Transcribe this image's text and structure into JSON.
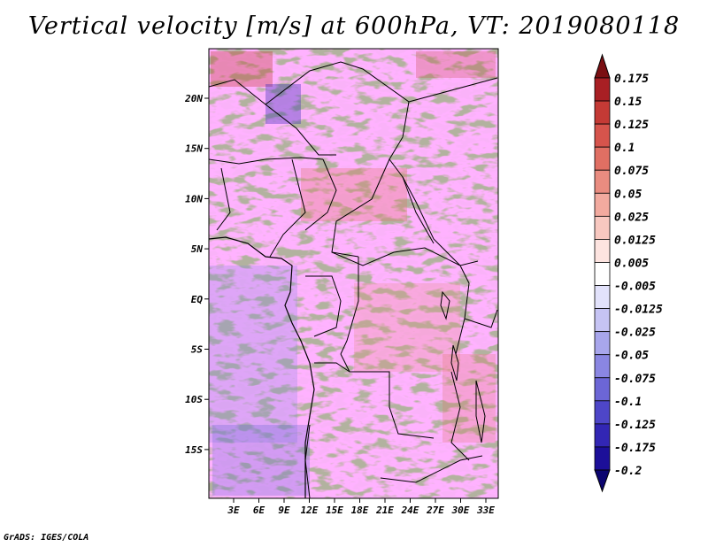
{
  "title": "Vertical velocity [m/s] at 600hPa, VT: 2019080118",
  "credit": "GrADS: IGES/COLA",
  "map": {
    "lat_labels": [
      "20N",
      "15N",
      "10N",
      "5N",
      "EQ",
      "5S",
      "10S",
      "15S"
    ],
    "lon_labels": [
      "3E",
      "6E",
      "9E",
      "12E",
      "15E",
      "18E",
      "21E",
      "24E",
      "27E",
      "30E",
      "33E"
    ]
  },
  "colorbar": {
    "labels": [
      "0.175",
      "0.15",
      "0.125",
      "0.1",
      "0.075",
      "0.05",
      "0.025",
      "0.0125",
      "0.005",
      "-0.005",
      "-0.0125",
      "-0.025",
      "-0.05",
      "-0.075",
      "-0.1",
      "-0.125",
      "-0.175",
      "-0.2"
    ],
    "colors": [
      "#7a0f12",
      "#a81f24",
      "#c43a35",
      "#d6544c",
      "#e06f63",
      "#e98c80",
      "#f2aa9f",
      "#f8c8c0",
      "#fde4e0",
      "#ffffff",
      "#e2e2fb",
      "#c6c4f4",
      "#a8a6ec",
      "#8a86e2",
      "#6c66d6",
      "#4e46c8",
      "#3226b4",
      "#1c0f99",
      "#0c0570"
    ]
  }
}
